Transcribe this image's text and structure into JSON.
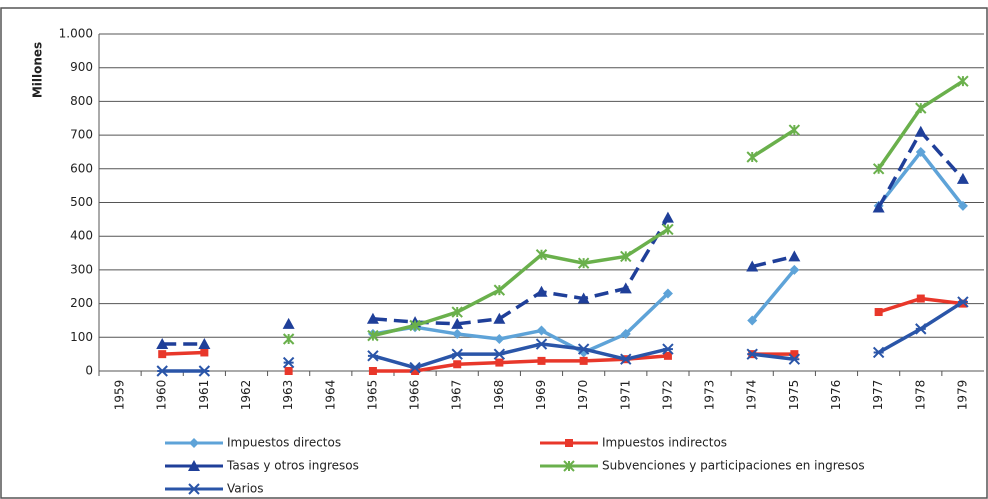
{
  "chart_data": {
    "type": "line",
    "y_label": "Millones",
    "categories": [
      "1959",
      "1960",
      "1961",
      "1962",
      "1963",
      "1964",
      "1965",
      "1966",
      "1967",
      "1968",
      "1969",
      "1970",
      "1971",
      "1972",
      "1973",
      "1974",
      "1975",
      "1976",
      "1977",
      "1978",
      "1979"
    ],
    "ylim": [
      0,
      1000
    ],
    "yticks": [
      0,
      100,
      200,
      300,
      400,
      500,
      600,
      700,
      800,
      900,
      {
        "value": 1000,
        "label": "1.000"
      }
    ],
    "grid": true,
    "series": [
      {
        "name": "Impuestos directos",
        "color": "#5ea3d8",
        "marker": "diamond",
        "dashed": false,
        "values": [
          null,
          null,
          null,
          null,
          null,
          null,
          110,
          130,
          110,
          95,
          120,
          55,
          110,
          230,
          null,
          150,
          300,
          null,
          490,
          650,
          490
        ]
      },
      {
        "name": "Impuestos indirectos",
        "color": "#e8372a",
        "marker": "square",
        "dashed": false,
        "values": [
          null,
          50,
          55,
          null,
          0,
          null,
          0,
          0,
          20,
          25,
          30,
          30,
          35,
          45,
          null,
          50,
          50,
          null,
          175,
          215,
          200
        ]
      },
      {
        "name": "Tasas y otros ingresos",
        "color": "#1f3f99",
        "marker": "triangle",
        "dashed": true,
        "values": [
          null,
          80,
          80,
          null,
          140,
          null,
          155,
          145,
          140,
          155,
          235,
          215,
          245,
          455,
          null,
          310,
          340,
          null,
          485,
          710,
          570
        ]
      },
      {
        "name": "Subvenciones y participaciones en ingresos",
        "color": "#6ab04c",
        "marker": "x",
        "dashed": false,
        "values": [
          null,
          null,
          null,
          null,
          95,
          null,
          105,
          135,
          175,
          240,
          345,
          320,
          340,
          420,
          null,
          635,
          715,
          null,
          600,
          780,
          860
        ]
      },
      {
        "name": "Varios",
        "color": "#2a55a8",
        "marker": "star",
        "dashed": false,
        "values": [
          null,
          0,
          0,
          null,
          25,
          null,
          45,
          10,
          50,
          50,
          80,
          65,
          35,
          65,
          null,
          50,
          35,
          null,
          55,
          125,
          205
        ]
      }
    ]
  }
}
